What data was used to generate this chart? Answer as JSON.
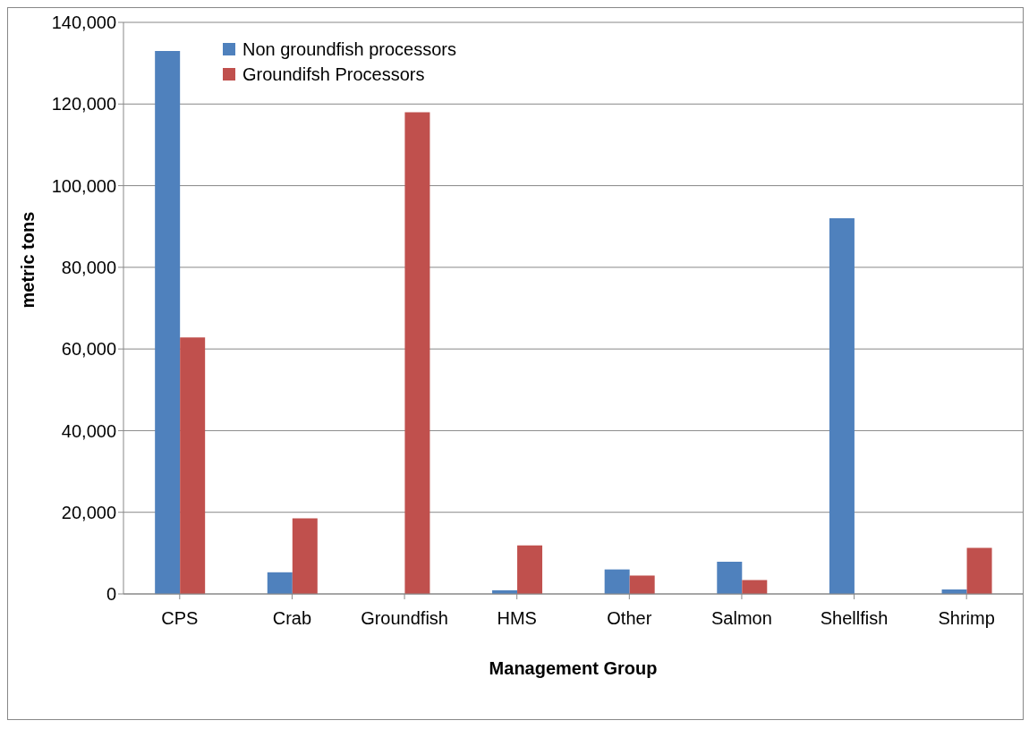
{
  "chart_data": {
    "type": "bar",
    "xlabel": "Management Group",
    "ylabel": "metric tons",
    "categories": [
      "CPS",
      "Crab",
      "Groundfish",
      "HMS",
      "Other",
      "Salmon",
      "Shellfish",
      "Shrimp"
    ],
    "series": [
      {
        "name": "Non groundfish processors",
        "color": "#4f81bd",
        "values": [
          133000,
          5300,
          0,
          900,
          6000,
          7900,
          92000,
          1100
        ]
      },
      {
        "name": "Groundifsh Processors",
        "color": "#c0504d",
        "values": [
          62800,
          18500,
          118000,
          11900,
          4500,
          3400,
          0,
          11300
        ]
      }
    ],
    "ylim": [
      0,
      140000
    ],
    "yticks": [
      0,
      {
        "value": 20000,
        "label": "20,000"
      },
      {
        "value": 40000,
        "label": "40,000"
      },
      {
        "value": 60000,
        "label": "60,000"
      },
      {
        "value": 80000,
        "label": "80,000"
      },
      {
        "value": 100000,
        "label": "100,000"
      },
      {
        "value": 120000,
        "label": "120,000"
      },
      {
        "value": 140000,
        "label": "140,000"
      }
    ],
    "grid": "y",
    "legend": "top left"
  }
}
